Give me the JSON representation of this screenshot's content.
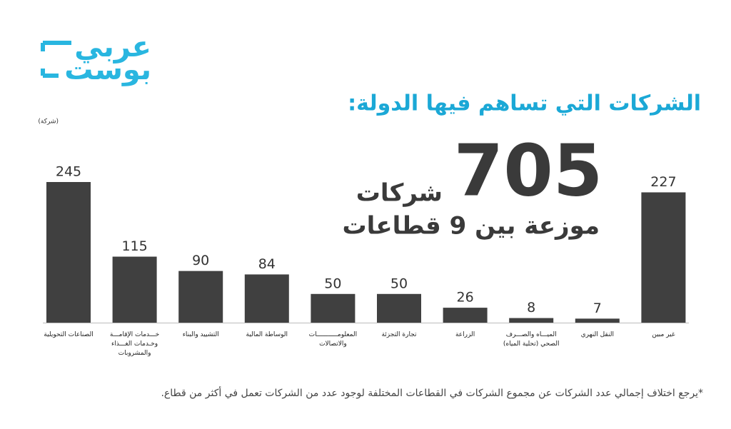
{
  "logo": {
    "line1": "عربي",
    "line2": "بوست"
  },
  "chart_data": {
    "type": "bar",
    "title": "الشركات التي تساهم فيها الدولة:",
    "unit": "(شركة)",
    "total": 705,
    "total_caption": "شركات",
    "total_subtitle": "موزعة بين 9 قطاعات",
    "categories": [
      "الصناعات التحويلية",
      "خـــدمات الإقامـــة\nوخـدمات الغـــذاء\nوالمشروبات",
      "التشييد والبناء",
      "الوساطة المالية",
      "المعلومـــــــــــات\nوالاتصالات",
      "تجارة التجزئة",
      "الزراعة",
      "الميـــاه والصـــرف\nالصحي (تحلية المياه)",
      "النقل النهري",
      "غير مبين"
    ],
    "values": [
      245,
      115,
      90,
      84,
      50,
      50,
      26,
      8,
      7,
      227
    ],
    "color": "#404040",
    "footnote": "*يرجع اختلاف إجمالي عدد الشركات عن مجموع الشركات في القطاعات المختلفة لوجود عدد من الشركات تعمل في أكثر من قطاع."
  }
}
